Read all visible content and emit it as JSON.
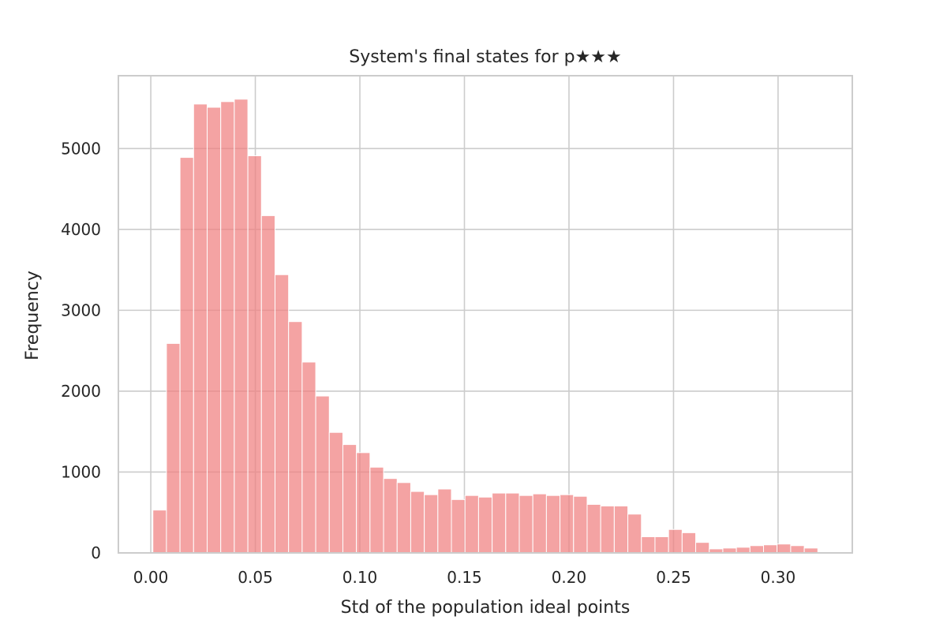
{
  "chart_data": {
    "type": "bar",
    "title": "System's final states for p★★★",
    "xlabel": "Std of the population ideal points",
    "ylabel": "Frequency",
    "xlim": [
      -0.0155,
      0.3355
    ],
    "ylim": [
      0,
      5900
    ],
    "xticks": [
      0.0,
      0.05,
      0.1,
      0.15,
      0.2,
      0.25,
      0.3
    ],
    "xtick_labels": [
      "0.00",
      "0.05",
      "0.10",
      "0.15",
      "0.20",
      "0.25",
      "0.30"
    ],
    "yticks": [
      0,
      1000,
      2000,
      3000,
      4000,
      5000
    ],
    "ytick_labels": [
      "0",
      "1000",
      "2000",
      "3000",
      "4000",
      "5000"
    ],
    "grid": true,
    "color": "#f08080",
    "bin_start": 0.001,
    "bin_width": 0.00649,
    "values": [
      530,
      2590,
      4890,
      5550,
      5510,
      5580,
      5610,
      4910,
      4170,
      3440,
      2860,
      2360,
      1940,
      1490,
      1340,
      1240,
      1060,
      920,
      870,
      760,
      720,
      790,
      660,
      710,
      690,
      740,
      740,
      710,
      730,
      710,
      720,
      700,
      600,
      580,
      580,
      480,
      200,
      200,
      290,
      250,
      130,
      50,
      60,
      70,
      90,
      100,
      110,
      90,
      60
    ]
  }
}
